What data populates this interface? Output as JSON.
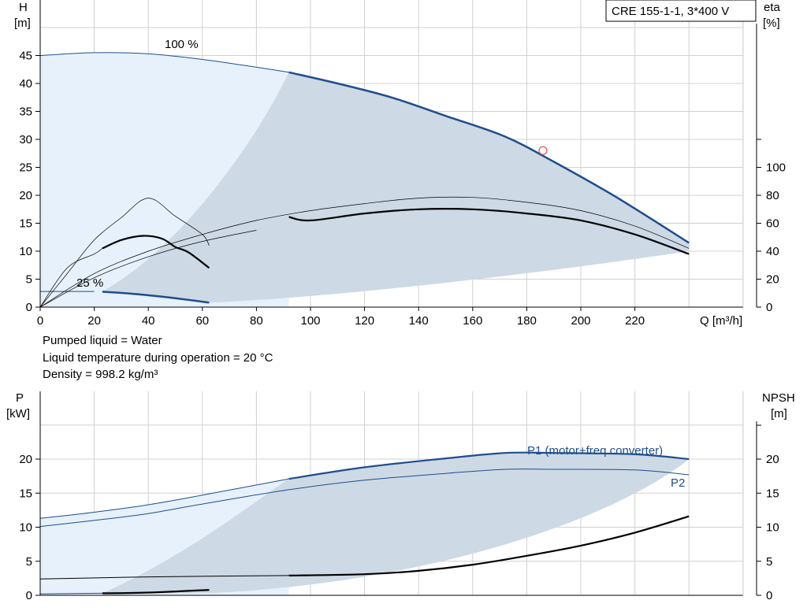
{
  "title": "CRE 155-1-1, 3*400 V",
  "info": {
    "liquid": "Pumped liquid = Water",
    "temperature": "Liquid temperature during operation = 20 °C",
    "density": "Density = 998.2 kg/m³"
  },
  "colors": {
    "blue": "#1f4e8c",
    "light_fill": "#e6f1fb",
    "dark_fill": "#cdd9e5",
    "grid": "#d0d0d0",
    "marker": "#e05050"
  },
  "chart_data": [
    {
      "type": "line",
      "name": "head-efficiency",
      "title": "CRE 155-1-1, 3*400 V",
      "xlabel": "Q [m³/h]",
      "ylabel_left": "H\n[m]",
      "ylabel_right": "eta\n[%]",
      "xlim": [
        0,
        260
      ],
      "ylim_left": [
        0,
        55
      ],
      "ylim_right": [
        0,
        220
      ],
      "x_ticks": [
        0,
        20,
        40,
        60,
        80,
        100,
        120,
        140,
        160,
        180,
        200,
        220
      ],
      "y_ticks_left": [
        0,
        5,
        10,
        15,
        20,
        25,
        30,
        35,
        40,
        45
      ],
      "y_ticks_right": [
        0,
        20,
        40,
        60,
        80,
        100
      ],
      "annotations": [
        "100 %",
        "25 %"
      ],
      "series": [
        {
          "name": "100 %",
          "x": [
            0,
            20,
            40,
            60,
            80,
            92,
            110,
            130,
            150,
            172,
            190,
            213,
            240
          ],
          "values": [
            45,
            45.5,
            45.3,
            44.3,
            42.9,
            42,
            40,
            37.5,
            34.2,
            30.5,
            26,
            19.7,
            11.5
          ]
        },
        {
          "name": "25 %",
          "x": [
            0,
            20,
            40,
            60,
            62.5
          ],
          "values": [
            2.8,
            2.8,
            2.3,
            1.2,
            0.8
          ]
        },
        {
          "x": [
            0,
            10,
            20,
            30,
            40,
            50,
            60,
            62.5
          ],
          "values": [
            0,
            24,
            48,
            64,
            78,
            65,
            52,
            44
          ]
        },
        {
          "x": [
            0,
            10,
            20,
            23,
            30,
            38,
            45,
            50,
            55,
            62.5
          ],
          "values": [
            0,
            28,
            38,
            42,
            48,
            51,
            49,
            43,
            39,
            28
          ]
        },
        {
          "x": [
            0,
            20,
            40,
            60,
            80,
            100,
            120,
            140,
            160,
            180,
            200,
            220,
            240
          ],
          "values": [
            0,
            24,
            40,
            52,
            62,
            69,
            74,
            78,
            78.5,
            75,
            69,
            58,
            42
          ]
        },
        {
          "x": [
            0,
            20,
            40,
            60,
            80,
            100,
            120,
            140,
            160,
            180,
            200,
            220,
            240
          ],
          "values": [
            0,
            21,
            36,
            47,
            55,
            62,
            67,
            70,
            70,
            67,
            62,
            52,
            38
          ]
        }
      ],
      "operating_point": {
        "x": 186,
        "y": 28
      }
    },
    {
      "type": "line",
      "name": "power-npsh",
      "ylabel_left": "P\n[kW]",
      "ylabel_right": "NPSH\n[m]",
      "xlim": [
        0,
        260
      ],
      "ylim_left": [
        0,
        28
      ],
      "ylim_right": [
        0,
        28
      ],
      "y_ticks_left": [
        0,
        5,
        10,
        15,
        20
      ],
      "y_ticks_right": [
        0,
        5,
        10,
        15,
        20
      ],
      "series": [
        {
          "name": "P1 (motor+freq.converter)",
          "x": [
            0,
            20,
            40,
            60,
            92,
            120,
            150,
            172,
            190,
            220,
            240
          ],
          "values": [
            11.3,
            12.2,
            13.3,
            14.7,
            17.1,
            18.8,
            20.1,
            20.9,
            20.9,
            20.7,
            20
          ]
        },
        {
          "name": "P2",
          "x": [
            0,
            20,
            40,
            60,
            92,
            120,
            150,
            172,
            190,
            220,
            240
          ],
          "values": [
            10.1,
            11,
            12,
            13.4,
            15.5,
            16.9,
            17.9,
            18.5,
            18.5,
            18.4,
            17.7
          ]
        },
        {
          "x": [
            0,
            40,
            92,
            120,
            140,
            160,
            180,
            200,
            220,
            240
          ],
          "values": [
            2.4,
            2.7,
            2.9,
            3.1,
            3.6,
            4.5,
            5.8,
            7.3,
            9.2,
            11.6
          ]
        },
        {
          "x": [
            0,
            23,
            40,
            62.5
          ],
          "values": [
            0.2,
            0.3,
            0.4,
            0.8
          ]
        }
      ]
    }
  ]
}
